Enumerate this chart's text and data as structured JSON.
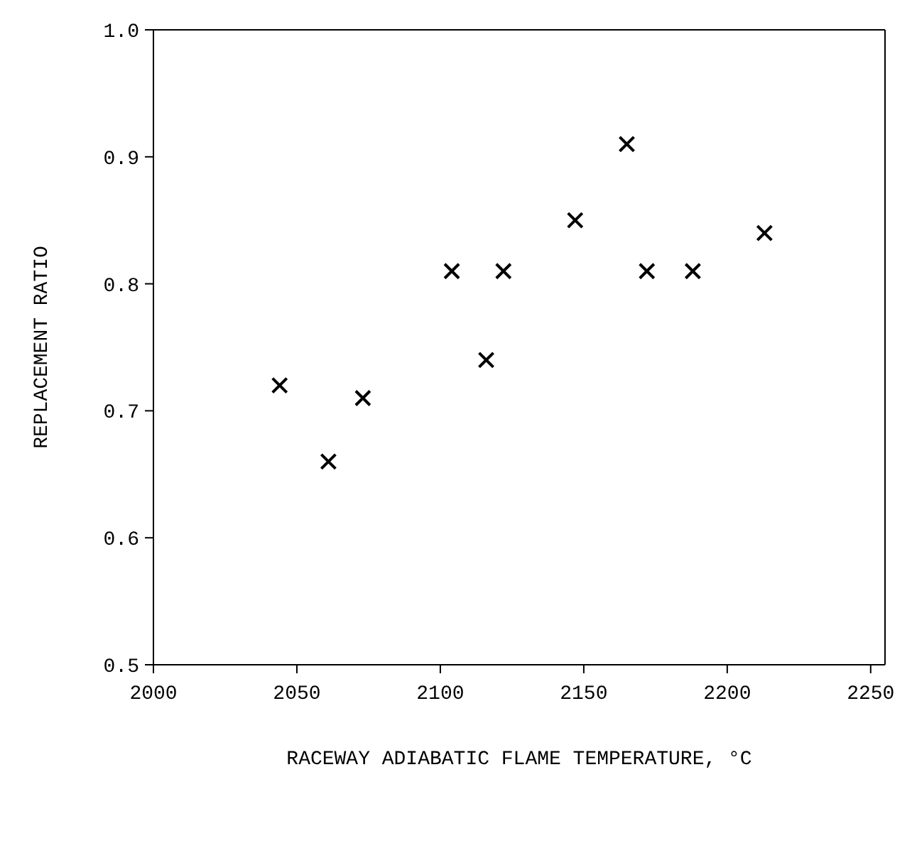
{
  "chart_data": {
    "type": "scatter",
    "xlabel": "RACEWAY ADIABATIC FLAME TEMPERATURE, °C",
    "ylabel": "REPLACEMENT RATIO",
    "x": [
      2044,
      2061,
      2073,
      2104,
      2116,
      2122,
      2147,
      2165,
      2172,
      2188,
      2213
    ],
    "series": [
      {
        "color": "#000000",
        "values": [
          0.72,
          0.66,
          0.71,
          0.81,
          0.74,
          0.81,
          0.85,
          0.91,
          0.81,
          0.81,
          0.84
        ]
      }
    ],
    "xlim": [
      2000,
      2255
    ],
    "xticks": [
      2000,
      2050,
      2100,
      2150,
      2200,
      2250
    ],
    "ylim": [
      0.5,
      1.0
    ],
    "yticks": [
      {
        "value": 0.5,
        "label": "0.5"
      },
      {
        "value": 0.6,
        "label": "0.6"
      },
      {
        "value": 0.7,
        "label": "0.7"
      },
      {
        "value": 0.8,
        "label": "0.8"
      },
      {
        "value": 0.9,
        "label": "0.9"
      },
      {
        "value": 1.0,
        "label": "1.0"
      }
    ],
    "marker": "cross"
  }
}
